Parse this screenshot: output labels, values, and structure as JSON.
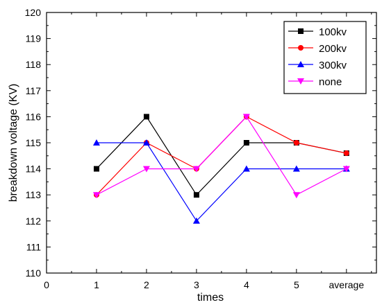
{
  "chart_data": {
    "type": "line",
    "xlabel": "times",
    "ylabel": "breakdown voltage (KV)",
    "x_ticks": [
      "0",
      "1",
      "2",
      "3",
      "4",
      "5",
      "average"
    ],
    "xlim": [
      0,
      6.6
    ],
    "ylim": [
      110,
      120
    ],
    "y_ticks": [
      "110",
      "111",
      "112",
      "113",
      "114",
      "115",
      "116",
      "117",
      "118",
      "119",
      "120"
    ],
    "x": [
      1,
      2,
      3,
      4,
      5,
      6
    ],
    "series": [
      {
        "name": "100kv",
        "color": "#000000",
        "marker": "square",
        "values": [
          114,
          116,
          113,
          115,
          115,
          114.6
        ]
      },
      {
        "name": "200kv",
        "color": "#ff0000",
        "marker": "circle",
        "values": [
          113,
          115,
          114,
          116,
          115,
          114.6
        ]
      },
      {
        "name": "300kv",
        "color": "#0000ff",
        "marker": "triangle-up",
        "values": [
          115,
          115,
          112,
          114,
          114,
          114
        ]
      },
      {
        "name": "none",
        "color": "#ff00ff",
        "marker": "triangle-down",
        "values": [
          113,
          114,
          114,
          116,
          113,
          114
        ]
      }
    ],
    "grid": false,
    "legend_position": "top-right"
  }
}
